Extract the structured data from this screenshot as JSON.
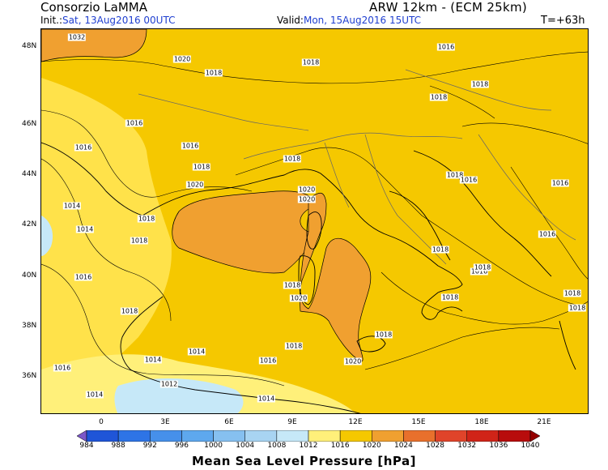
{
  "header": {
    "source": "Consorzio LaMMA",
    "model": "ARW 12km - (ECM 25km)",
    "init_label": "Init.:",
    "init_value": "Sat, 13Aug2016 00UTC",
    "valid_label": "Valid:",
    "valid_value": "Mon, 15Aug2016 15UTC",
    "lead_time": "T=+63h"
  },
  "axes": {
    "lat_labels": [
      "48N",
      "46N",
      "44N",
      "42N",
      "40N",
      "38N",
      "36N"
    ],
    "lon_labels": [
      "0",
      "3E",
      "6E",
      "9E",
      "12E",
      "15E",
      "18E",
      "21E"
    ]
  },
  "colorbar": {
    "title": "Mean Sea Level Pressure [hPa]",
    "levels": [
      "984",
      "988",
      "992",
      "996",
      "1000",
      "1004",
      "1008",
      "1012",
      "1016",
      "1020",
      "1024",
      "1028",
      "1032",
      "1036",
      "1040"
    ],
    "colors": [
      "#7b58c8",
      "#1f55d8",
      "#2e74e6",
      "#4690ea",
      "#5ea8ee",
      "#86c0f0",
      "#a8d4f2",
      "#c6e8f8",
      "#fff07a",
      "#f5c800",
      "#f0a030",
      "#e8702c",
      "#e0442a",
      "#d02418",
      "#b80c0c",
      "#950000"
    ]
  },
  "isobar_labels": [
    {
      "text": "1032"
    },
    {
      "text": "1020"
    },
    {
      "text": "1018"
    },
    {
      "text": "1016"
    },
    {
      "text": "1018"
    },
    {
      "text": "1018"
    },
    {
      "text": "1018"
    },
    {
      "text": "1016"
    },
    {
      "text": "1016"
    },
    {
      "text": "1016"
    },
    {
      "text": "1018"
    },
    {
      "text": "1018"
    },
    {
      "text": "1020"
    },
    {
      "text": "1020"
    },
    {
      "text": "1020"
    },
    {
      "text": "1014"
    },
    {
      "text": "1018"
    },
    {
      "text": "1014"
    },
    {
      "text": "1018"
    },
    {
      "text": "1018"
    },
    {
      "text": "1016"
    },
    {
      "text": "1016"
    },
    {
      "text": "1018"
    },
    {
      "text": "1018"
    },
    {
      "text": "1020"
    },
    {
      "text": "1018"
    },
    {
      "text": "1016"
    },
    {
      "text": "1018"
    },
    {
      "text": "1018"
    },
    {
      "text": "1018"
    },
    {
      "text": "1018"
    },
    {
      "text": "1016"
    },
    {
      "text": "1014"
    },
    {
      "text": "1016"
    },
    {
      "text": "1014"
    },
    {
      "text": "1012"
    },
    {
      "text": "1014"
    },
    {
      "text": "1014"
    },
    {
      "text": "1020"
    },
    {
      "text": "1018"
    },
    {
      "text": "1016"
    },
    {
      "text": "1016"
    },
    {
      "text": "1018"
    }
  ]
}
